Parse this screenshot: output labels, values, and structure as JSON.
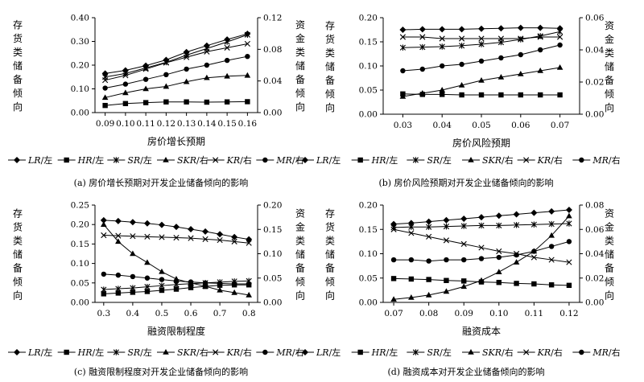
{
  "figure": {
    "legend_labels": {
      "LR": [
        "LR",
        "/左"
      ],
      "HR": [
        "HR",
        "/左"
      ],
      "SR": [
        "SR",
        "/左"
      ],
      "SKR": [
        "SKR",
        "/右"
      ],
      "KR": [
        "KR",
        "/右"
      ],
      "MR": [
        "MR",
        "/右"
      ]
    },
    "left_axis_label": [
      "存",
      "货",
      "类",
      "储",
      "备",
      "倾",
      "向"
    ],
    "right_axis_label": [
      "资",
      "金",
      "类",
      "储",
      "备",
      "倾",
      "向"
    ]
  },
  "chart_data": [
    {
      "type": "line",
      "caption": "(a) 房价增长预期对开发企业储备倾向的影响",
      "xlabel": "房价增长预期",
      "x": [
        0.09,
        0.1,
        0.11,
        0.12,
        0.13,
        0.14,
        0.15,
        0.16
      ],
      "x_ticks": [
        "0.09",
        "0.10",
        "0.11",
        "0.12",
        "0.13",
        "0.14",
        "0.15",
        "0.16"
      ],
      "xlim": [
        0.085,
        0.165
      ],
      "ylim_left": [
        0,
        0.4
      ],
      "y_ticks_left": [
        "0.00",
        "0.10",
        "0.20",
        "0.30",
        "0.40"
      ],
      "ylim_right": [
        0,
        0.12
      ],
      "y_ticks_right": [
        "0.00",
        "0.04",
        "0.08",
        "0.12"
      ],
      "series": [
        {
          "name": "LR/左",
          "axis": "left",
          "marker": "diamond",
          "values": [
            0.165,
            0.178,
            0.198,
            0.222,
            0.255,
            0.282,
            0.308,
            0.332
          ]
        },
        {
          "name": "HR/左",
          "axis": "left",
          "marker": "square",
          "values": [
            0.03,
            0.038,
            0.042,
            0.045,
            0.045,
            0.044,
            0.045,
            0.046
          ]
        },
        {
          "name": "SR/左",
          "axis": "left",
          "marker": "star",
          "values": [
            0.15,
            0.165,
            0.188,
            0.212,
            0.242,
            0.27,
            0.298,
            0.328
          ]
        },
        {
          "name": "SKR/右",
          "axis": "right",
          "marker": "triangle",
          "values": [
            0.019,
            0.025,
            0.03,
            0.033,
            0.039,
            0.044,
            0.046,
            0.047
          ]
        },
        {
          "name": "KR/右",
          "axis": "right",
          "marker": "x",
          "values": [
            0.041,
            0.047,
            0.055,
            0.063,
            0.07,
            0.077,
            0.082,
            0.087
          ]
        },
        {
          "name": "MR/右",
          "axis": "right",
          "marker": "circle",
          "values": [
            0.031,
            0.036,
            0.042,
            0.048,
            0.055,
            0.06,
            0.066,
            0.071
          ]
        }
      ]
    },
    {
      "type": "line",
      "caption": "(b) 房价风险预期对开发企业储备倾向的影响",
      "xlabel": "房价风险预期",
      "x": [
        0.03,
        0.035,
        0.04,
        0.045,
        0.05,
        0.055,
        0.06,
        0.065,
        0.07
      ],
      "x_ticks": [
        "0.03",
        "0.04",
        "0.05",
        "0.06",
        "0.07"
      ],
      "xlim": [
        0.025,
        0.075
      ],
      "ylim_left": [
        0,
        0.2
      ],
      "y_ticks_left": [
        "0.00",
        "0.05",
        "0.10",
        "0.15",
        "0.20"
      ],
      "ylim_right": [
        0,
        0.06
      ],
      "y_ticks_right": [
        "0.00",
        "0.02",
        "0.04",
        "0.06"
      ],
      "series": [
        {
          "name": "LR/左",
          "axis": "left",
          "marker": "diamond",
          "values": [
            0.175,
            0.176,
            0.176,
            0.176,
            0.177,
            0.178,
            0.179,
            0.179,
            0.178
          ]
        },
        {
          "name": "HR/左",
          "axis": "left",
          "marker": "square",
          "values": [
            0.042,
            0.041,
            0.041,
            0.04,
            0.04,
            0.04,
            0.04,
            0.04,
            0.04
          ]
        },
        {
          "name": "SR/左",
          "axis": "left",
          "marker": "star",
          "values": [
            0.138,
            0.139,
            0.14,
            0.142,
            0.145,
            0.149,
            0.155,
            0.162,
            0.171
          ]
        },
        {
          "name": "SKR/右",
          "axis": "right",
          "marker": "triangle",
          "values": [
            0.011,
            0.013,
            0.015,
            0.018,
            0.021,
            0.023,
            0.025,
            0.027,
            0.029
          ]
        },
        {
          "name": "KR/右",
          "axis": "right",
          "marker": "x",
          "values": [
            0.048,
            0.048,
            0.047,
            0.047,
            0.047,
            0.047,
            0.047,
            0.048,
            0.048
          ]
        },
        {
          "name": "MR/右",
          "axis": "right",
          "marker": "circle",
          "values": [
            0.027,
            0.028,
            0.03,
            0.031,
            0.033,
            0.035,
            0.037,
            0.04,
            0.043
          ]
        }
      ]
    },
    {
      "type": "line",
      "caption": "(c) 融资限制程度对开发企业储备倾向的影响",
      "xlabel": "融资限制程度",
      "x": [
        0.3,
        0.35,
        0.4,
        0.45,
        0.5,
        0.55,
        0.6,
        0.65,
        0.7,
        0.75,
        0.8
      ],
      "x_ticks": [
        "0.3",
        "0.4",
        "0.5",
        "0.6",
        "0.7",
        "0.8"
      ],
      "xlim": [
        0.27,
        0.83
      ],
      "ylim_left": [
        0,
        0.25
      ],
      "y_ticks_left": [
        "0.00",
        "0.05",
        "0.10",
        "0.15",
        "0.20",
        "0.25"
      ],
      "ylim_right": [
        0,
        0.2
      ],
      "y_ticks_right": [
        "0.00",
        "0.05",
        "0.10",
        "0.15",
        "0.20"
      ],
      "series": [
        {
          "name": "LR/左",
          "axis": "left",
          "marker": "diamond",
          "values": [
            0.211,
            0.209,
            0.206,
            0.203,
            0.199,
            0.194,
            0.188,
            0.182,
            0.175,
            0.168,
            0.162
          ]
        },
        {
          "name": "HR/左",
          "axis": "left",
          "marker": "square",
          "values": [
            0.022,
            0.024,
            0.026,
            0.028,
            0.031,
            0.034,
            0.038,
            0.041,
            0.044,
            0.045,
            0.045
          ]
        },
        {
          "name": "SR/左",
          "axis": "left",
          "marker": "star",
          "values": [
            0.033,
            0.035,
            0.037,
            0.04,
            0.043,
            0.046,
            0.048,
            0.05,
            0.052,
            0.054,
            0.055
          ]
        },
        {
          "name": "SKR/右",
          "axis": "right",
          "marker": "triangle",
          "values": [
            0.16,
            0.125,
            0.1,
            0.082,
            0.063,
            0.048,
            0.04,
            0.033,
            0.025,
            0.02,
            0.015
          ]
        },
        {
          "name": "KR/右",
          "axis": "right",
          "marker": "x",
          "values": [
            0.138,
            0.137,
            0.136,
            0.135,
            0.134,
            0.133,
            0.132,
            0.13,
            0.128,
            0.125,
            0.122
          ]
        },
        {
          "name": "MR/右",
          "axis": "right",
          "marker": "circle",
          "values": [
            0.058,
            0.056,
            0.053,
            0.05,
            0.047,
            0.044,
            0.042,
            0.04,
            0.039,
            0.038,
            0.038
          ]
        }
      ]
    },
    {
      "type": "line",
      "caption": "(d) 融资成本对开发企业储备倾向的影响",
      "xlabel": "融资成本",
      "x": [
        0.07,
        0.075,
        0.08,
        0.085,
        0.09,
        0.095,
        0.1,
        0.105,
        0.11,
        0.115,
        0.12
      ],
      "x_ticks": [
        "0.07",
        "0.08",
        "0.09",
        "0.10",
        "0.11",
        "0.12"
      ],
      "xlim": [
        0.067,
        0.123
      ],
      "ylim_left": [
        0,
        0.2
      ],
      "y_ticks_left": [
        "0.00",
        "0.05",
        "0.10",
        "0.15",
        "0.20"
      ],
      "ylim_right": [
        0,
        0.08
      ],
      "y_ticks_right": [
        "0.00",
        "0.02",
        "0.04",
        "0.06",
        "0.08"
      ],
      "series": [
        {
          "name": "LR/左",
          "axis": "left",
          "marker": "diamond",
          "values": [
            0.161,
            0.163,
            0.166,
            0.169,
            0.172,
            0.175,
            0.178,
            0.181,
            0.184,
            0.187,
            0.19
          ]
        },
        {
          "name": "HR/左",
          "axis": "left",
          "marker": "square",
          "values": [
            0.049,
            0.048,
            0.047,
            0.045,
            0.044,
            0.042,
            0.041,
            0.039,
            0.038,
            0.036,
            0.035
          ]
        },
        {
          "name": "SR/左",
          "axis": "left",
          "marker": "star",
          "values": [
            0.154,
            0.155,
            0.155,
            0.156,
            0.157,
            0.158,
            0.158,
            0.159,
            0.16,
            0.161,
            0.162
          ]
        },
        {
          "name": "SKR/右",
          "axis": "right",
          "marker": "triangle",
          "values": [
            0.0025,
            0.004,
            0.006,
            0.009,
            0.013,
            0.018,
            0.025,
            0.033,
            0.042,
            0.055,
            0.071
          ]
        },
        {
          "name": "KR/右",
          "axis": "right",
          "marker": "x",
          "values": [
            0.06,
            0.057,
            0.054,
            0.051,
            0.048,
            0.045,
            0.042,
            0.04,
            0.037,
            0.035,
            0.033
          ]
        },
        {
          "name": "MR/右",
          "axis": "right",
          "marker": "circle",
          "values": [
            0.035,
            0.035,
            0.034,
            0.035,
            0.035,
            0.036,
            0.037,
            0.039,
            0.042,
            0.046,
            0.05
          ]
        }
      ]
    }
  ]
}
